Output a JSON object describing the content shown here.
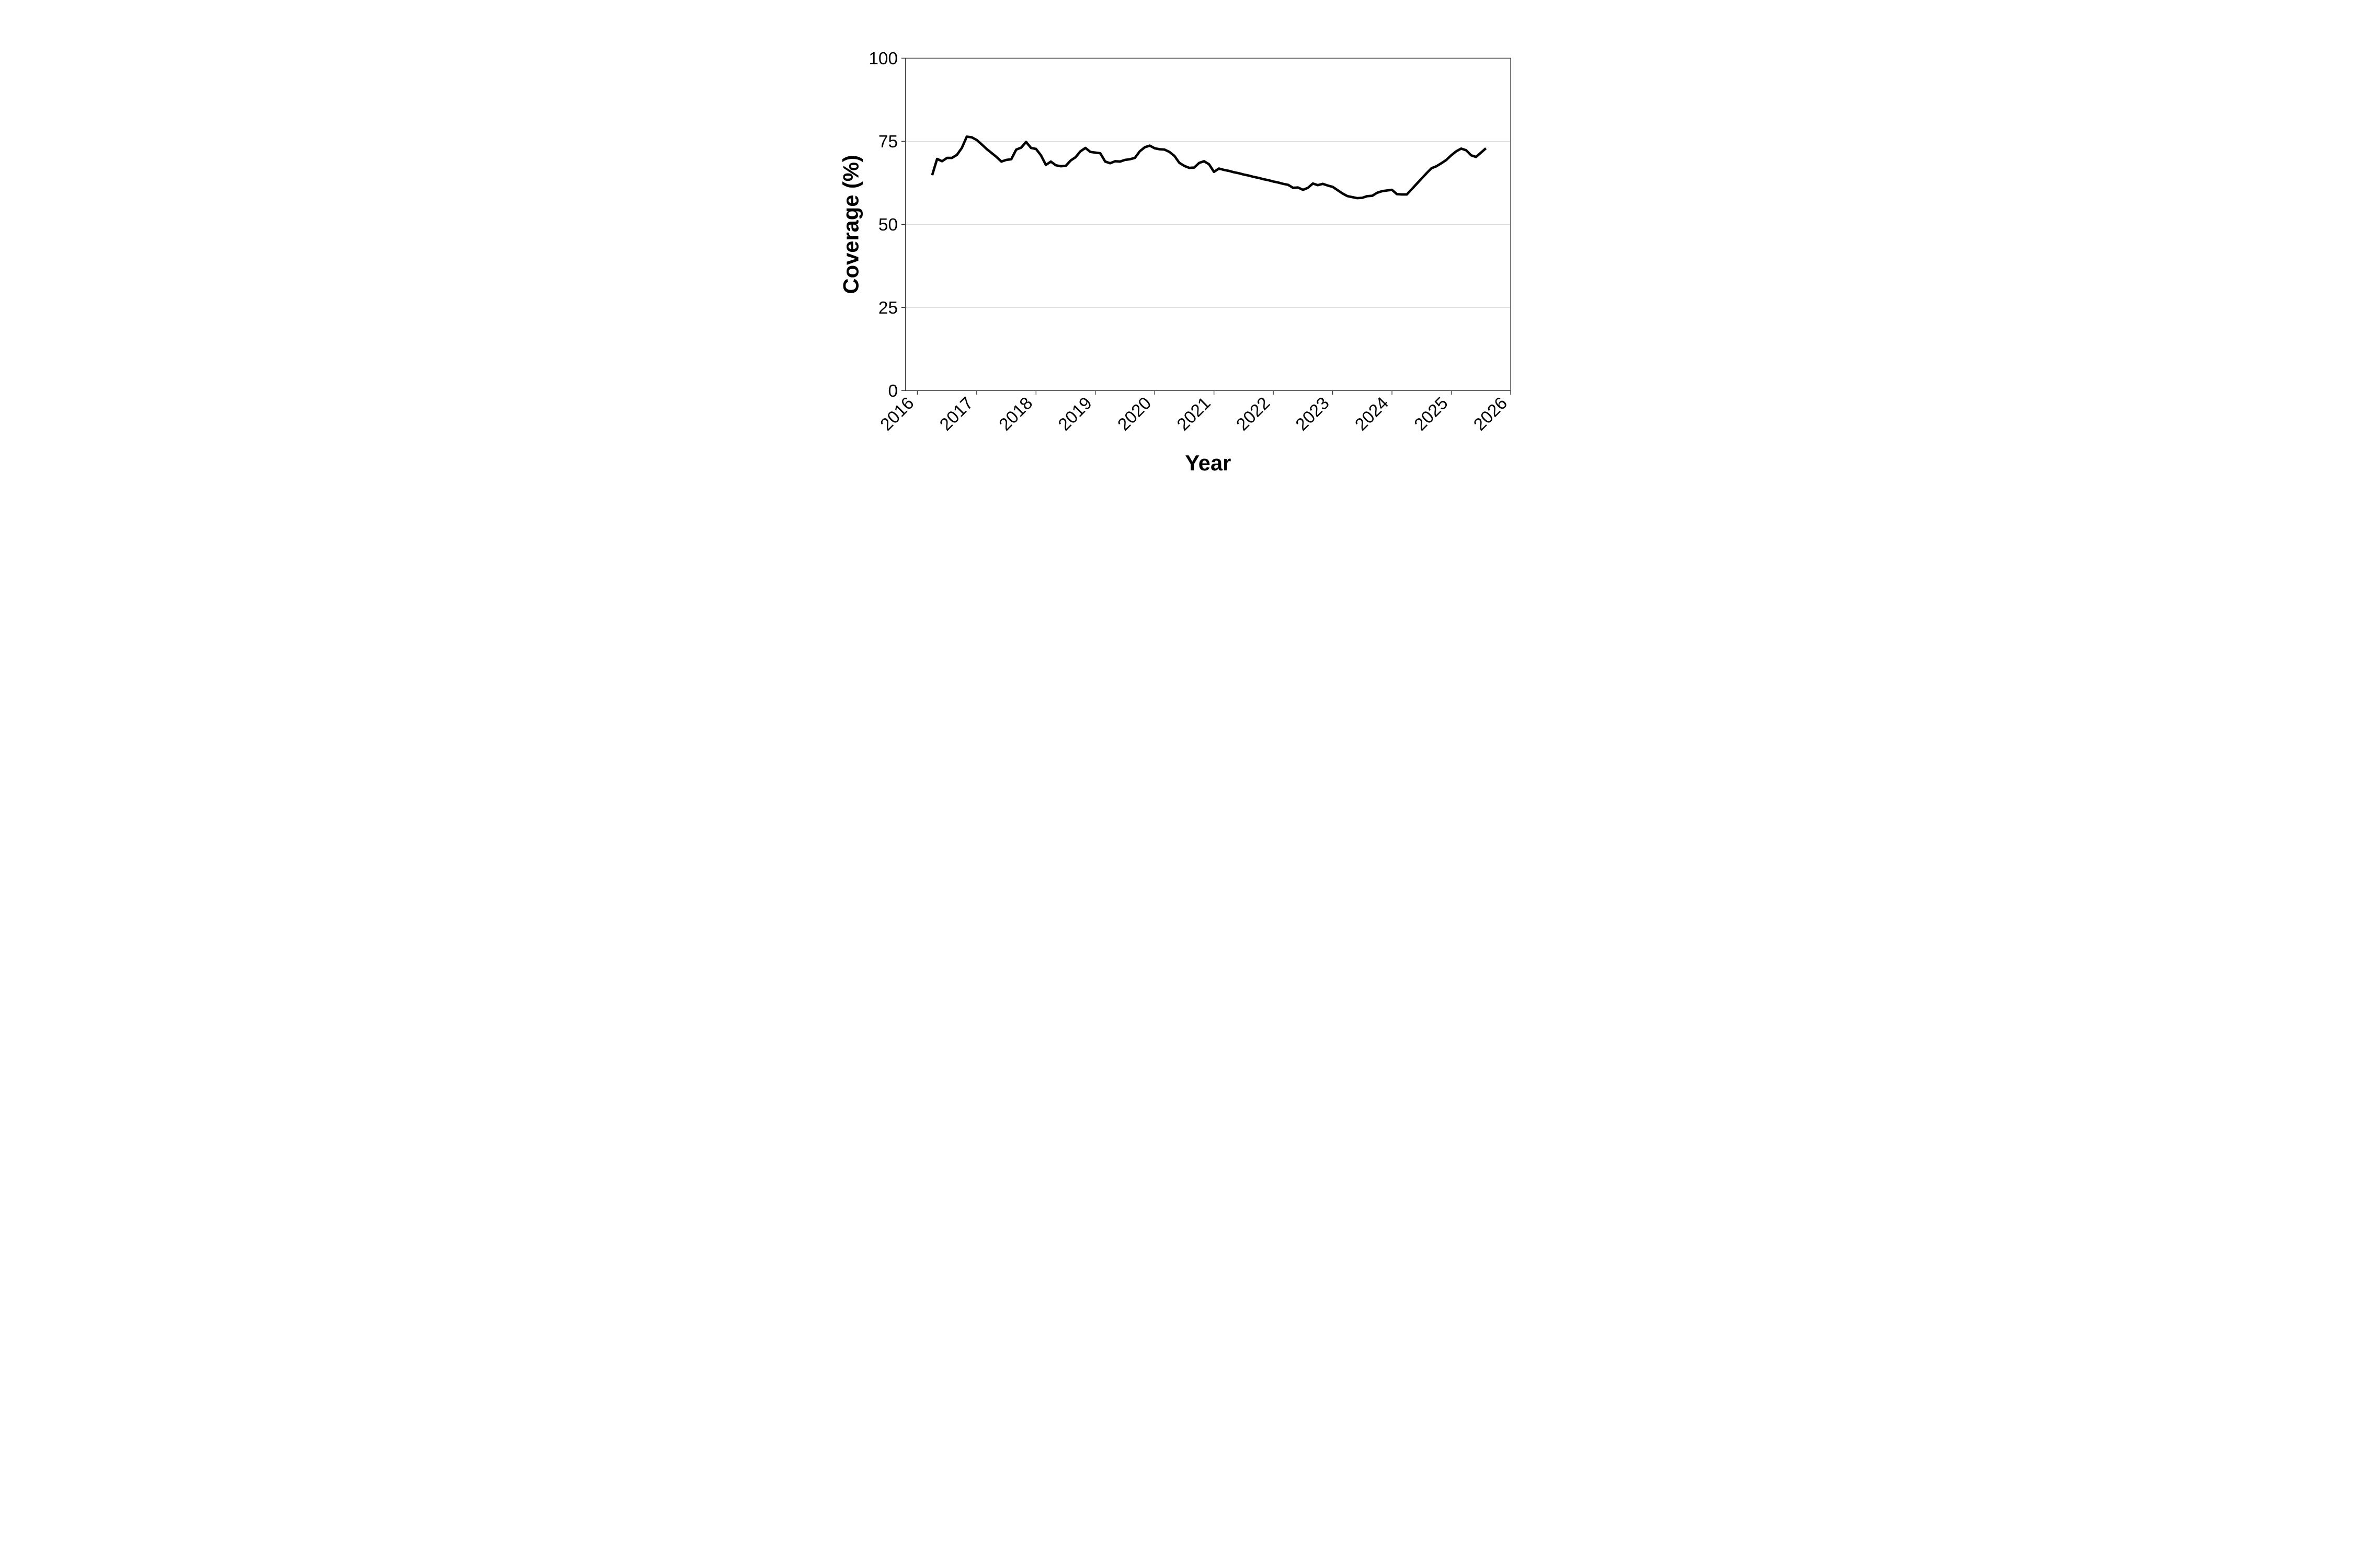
{
  "figure": {
    "background": "#ffffff"
  },
  "chart_data": {
    "type": "line",
    "title": "",
    "xlabel": "Year",
    "ylabel": "Coverage (%)",
    "xlim": [
      2015.8,
      2026.0
    ],
    "ylim": [
      0,
      100
    ],
    "x_ticks": [
      2016,
      2017,
      2018,
      2019,
      2020,
      2021,
      2022,
      2023,
      2024,
      2025,
      2026
    ],
    "x_tick_labels": [
      "2016",
      "2017",
      "2018",
      "2019",
      "2020",
      "2021",
      "2022",
      "2023",
      "2024",
      "2025",
      "2026"
    ],
    "y_ticks": [
      0,
      25,
      50,
      75,
      100
    ],
    "y_tick_labels": [
      "0",
      "25",
      "50",
      "75",
      "100"
    ],
    "y_gridlines": [
      25,
      50,
      75
    ],
    "grid": "horizontal-only",
    "legend": "none",
    "line_color": "#000000",
    "grid_color": "#d4d4d4",
    "border_color": "#3a3a3a",
    "tick_color": "#333333",
    "series": [
      {
        "name": "coverage",
        "points": [
          [
            "2016-04",
            64.8
          ],
          [
            "2016-05",
            69.7
          ],
          [
            "2016-06",
            69.0
          ],
          [
            "2016-07",
            70.0
          ],
          [
            "2016-08",
            70.0
          ],
          [
            "2016-09",
            70.9
          ],
          [
            "2016-10",
            73.0
          ],
          [
            "2016-11",
            76.4
          ],
          [
            "2016-12",
            76.2
          ],
          [
            "2017-01",
            75.4
          ],
          [
            "2017-02",
            74.1
          ],
          [
            "2017-03",
            72.7
          ],
          [
            "2017-04",
            71.5
          ],
          [
            "2017-05",
            70.3
          ],
          [
            "2017-06",
            68.9
          ],
          [
            "2017-07",
            69.4
          ],
          [
            "2017-08",
            69.6
          ],
          [
            "2017-09",
            72.5
          ],
          [
            "2017-10",
            73.1
          ],
          [
            "2017-11",
            74.8
          ],
          [
            "2017-12",
            73.0
          ],
          [
            "2018-01",
            72.7
          ],
          [
            "2018-02",
            70.8
          ],
          [
            "2018-03",
            67.9
          ],
          [
            "2018-04",
            68.9
          ],
          [
            "2018-05",
            67.8
          ],
          [
            "2018-06",
            67.5
          ],
          [
            "2018-07",
            67.6
          ],
          [
            "2018-08",
            69.2
          ],
          [
            "2018-09",
            70.2
          ],
          [
            "2018-10",
            72.0
          ],
          [
            "2018-11",
            73.0
          ],
          [
            "2018-12",
            71.8
          ],
          [
            "2019-01",
            71.6
          ],
          [
            "2019-02",
            71.4
          ],
          [
            "2019-03",
            68.9
          ],
          [
            "2019-04",
            68.4
          ],
          [
            "2019-05",
            69.0
          ],
          [
            "2019-06",
            68.9
          ],
          [
            "2019-07",
            69.4
          ],
          [
            "2019-08",
            69.6
          ],
          [
            "2019-09",
            70.0
          ],
          [
            "2019-10",
            72.0
          ],
          [
            "2019-11",
            73.2
          ],
          [
            "2019-12",
            73.7
          ],
          [
            "2020-01",
            72.9
          ],
          [
            "2020-02",
            72.6
          ],
          [
            "2020-03",
            72.5
          ],
          [
            "2020-04",
            71.8
          ],
          [
            "2020-05",
            70.6
          ],
          [
            "2020-06",
            68.5
          ],
          [
            "2020-07",
            67.6
          ],
          [
            "2020-08",
            67.0
          ],
          [
            "2020-09",
            67.1
          ],
          [
            "2020-10",
            68.5
          ],
          [
            "2020-11",
            69.0
          ],
          [
            "2020-12",
            68.1
          ],
          [
            "2021-01",
            65.8
          ],
          [
            "2021-02",
            66.8
          ],
          [
            "2021-03",
            66.4
          ],
          [
            "2021-04",
            66.1
          ],
          [
            "2021-05",
            65.7
          ],
          [
            "2021-06",
            65.4
          ],
          [
            "2021-07",
            65.0
          ],
          [
            "2021-08",
            64.7
          ],
          [
            "2021-09",
            64.3
          ],
          [
            "2021-10",
            64.0
          ],
          [
            "2021-11",
            63.6
          ],
          [
            "2021-12",
            63.3
          ],
          [
            "2022-01",
            62.9
          ],
          [
            "2022-02",
            62.6
          ],
          [
            "2022-03",
            62.2
          ],
          [
            "2022-04",
            61.9
          ],
          [
            "2022-05",
            61.0
          ],
          [
            "2022-06",
            61.1
          ],
          [
            "2022-07",
            60.4
          ],
          [
            "2022-08",
            61.0
          ],
          [
            "2022-09",
            62.3
          ],
          [
            "2022-10",
            61.8
          ],
          [
            "2022-11",
            62.2
          ],
          [
            "2022-12",
            61.7
          ],
          [
            "2023-01",
            61.3
          ],
          [
            "2023-02",
            60.3
          ],
          [
            "2023-03",
            59.3
          ],
          [
            "2023-04",
            58.5
          ],
          [
            "2023-05",
            58.2
          ],
          [
            "2023-06",
            57.9
          ],
          [
            "2023-07",
            58.0
          ],
          [
            "2023-08",
            58.5
          ],
          [
            "2023-09",
            58.6
          ],
          [
            "2023-10",
            59.5
          ],
          [
            "2023-11",
            60.0
          ],
          [
            "2023-12",
            60.2
          ],
          [
            "2024-01",
            60.4
          ],
          [
            "2024-02",
            59.1
          ],
          [
            "2024-03",
            59.0
          ],
          [
            "2024-04",
            59.0
          ],
          [
            "2024-05",
            60.6
          ],
          [
            "2024-06",
            62.2
          ],
          [
            "2024-07",
            63.8
          ],
          [
            "2024-08",
            65.4
          ],
          [
            "2024-09",
            66.9
          ],
          [
            "2024-10",
            67.5
          ],
          [
            "2024-11",
            68.4
          ],
          [
            "2024-12",
            69.4
          ],
          [
            "2025-01",
            70.8
          ],
          [
            "2025-02",
            72.0
          ],
          [
            "2025-03",
            72.8
          ],
          [
            "2025-04",
            72.3
          ],
          [
            "2025-05",
            70.8
          ],
          [
            "2025-06",
            70.3
          ],
          [
            "2025-07",
            71.6
          ],
          [
            "2025-08",
            72.9
          ]
        ]
      }
    ]
  }
}
